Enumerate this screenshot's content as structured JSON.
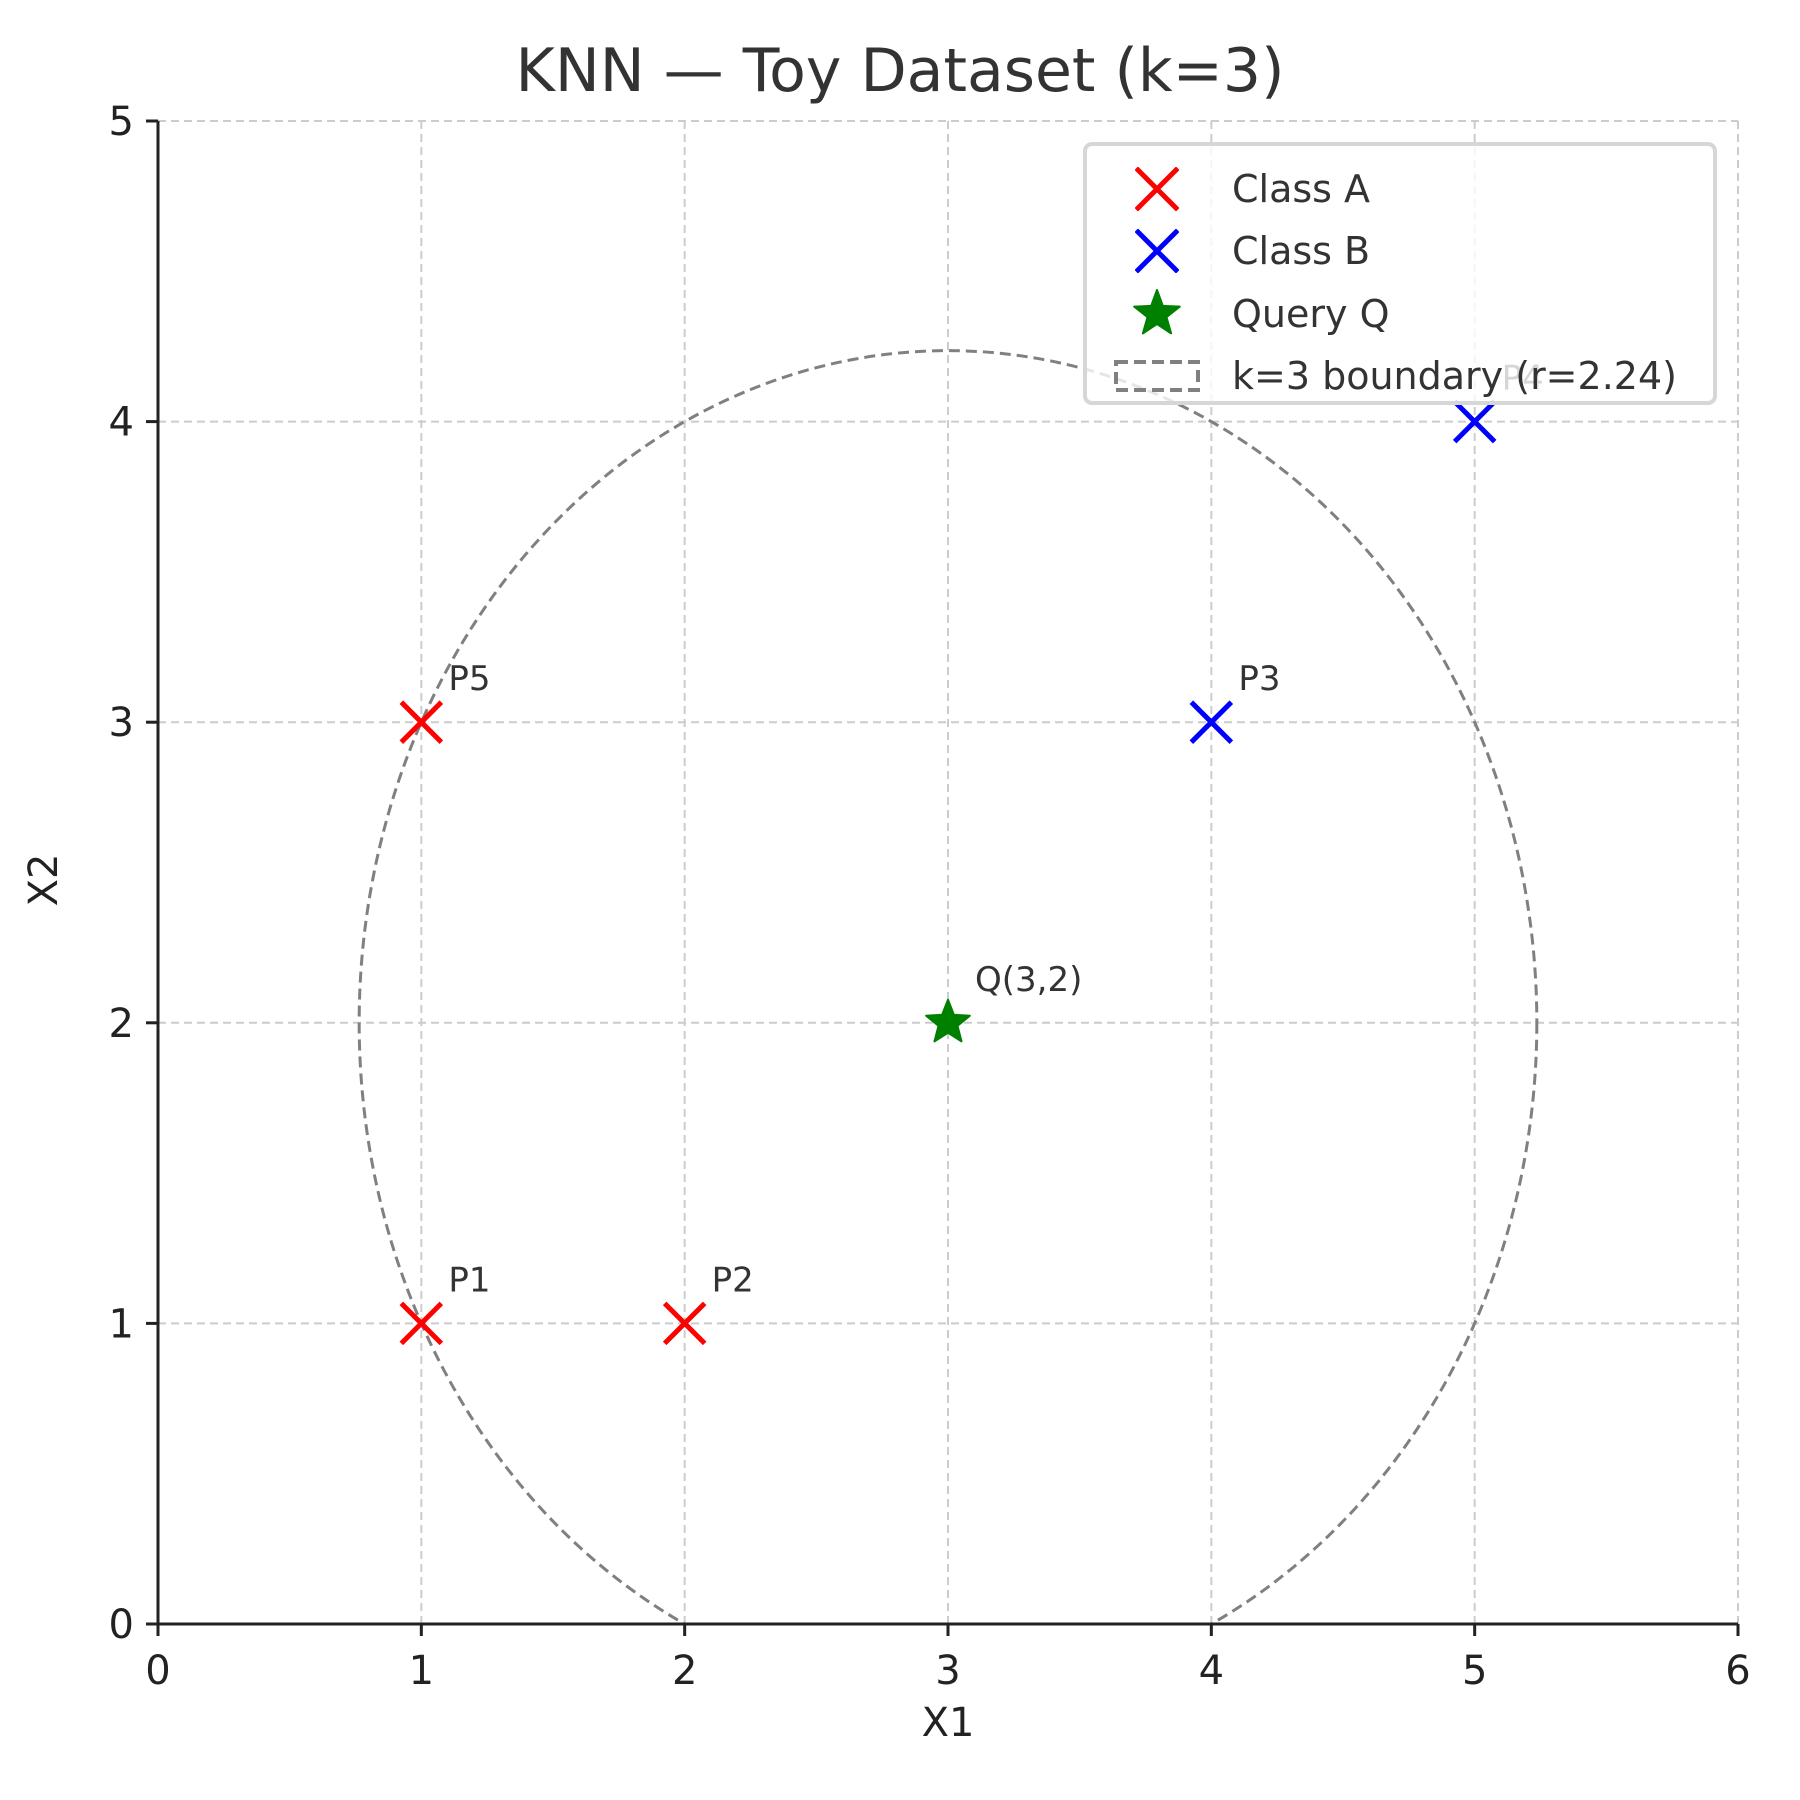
{
  "chart_data": {
    "type": "scatter",
    "title": "KNN — Toy Dataset (k=3)",
    "xlabel": "X1",
    "ylabel": "X2",
    "xlim": [
      0,
      6
    ],
    "ylim": [
      0,
      5
    ],
    "xticks": [
      "0",
      "1",
      "2",
      "3",
      "4",
      "5",
      "6"
    ],
    "yticks": [
      "0",
      "1",
      "2",
      "3",
      "4",
      "5"
    ],
    "grid": true,
    "legend_position": "upper right",
    "series": [
      {
        "name": "Class A",
        "marker": "x",
        "color": "#ff0000",
        "points": [
          {
            "label": "P1",
            "x": 1,
            "y": 1
          },
          {
            "label": "P2",
            "x": 2,
            "y": 1
          },
          {
            "label": "P5",
            "x": 1,
            "y": 3
          }
        ]
      },
      {
        "name": "Class B",
        "marker": "x",
        "color": "#0000ff",
        "points": [
          {
            "label": "P3",
            "x": 4,
            "y": 3
          },
          {
            "label": "P4",
            "x": 5,
            "y": 4
          }
        ]
      },
      {
        "name": "Query Q",
        "marker": "star",
        "color": "#008000",
        "points": [
          {
            "label": "Q(3,2)",
            "x": 3,
            "y": 2
          }
        ]
      }
    ],
    "boundary": {
      "name": "k=3 boundary (r=2.24)",
      "center": [
        3,
        2
      ],
      "radius": 2.24,
      "style": "dashed",
      "color": "#808080"
    }
  },
  "legend": {
    "items": [
      {
        "label": "Class A"
      },
      {
        "label": "Class B"
      },
      {
        "label": "Query Q"
      },
      {
        "label": "k=3 boundary (r=2.24)"
      }
    ]
  }
}
